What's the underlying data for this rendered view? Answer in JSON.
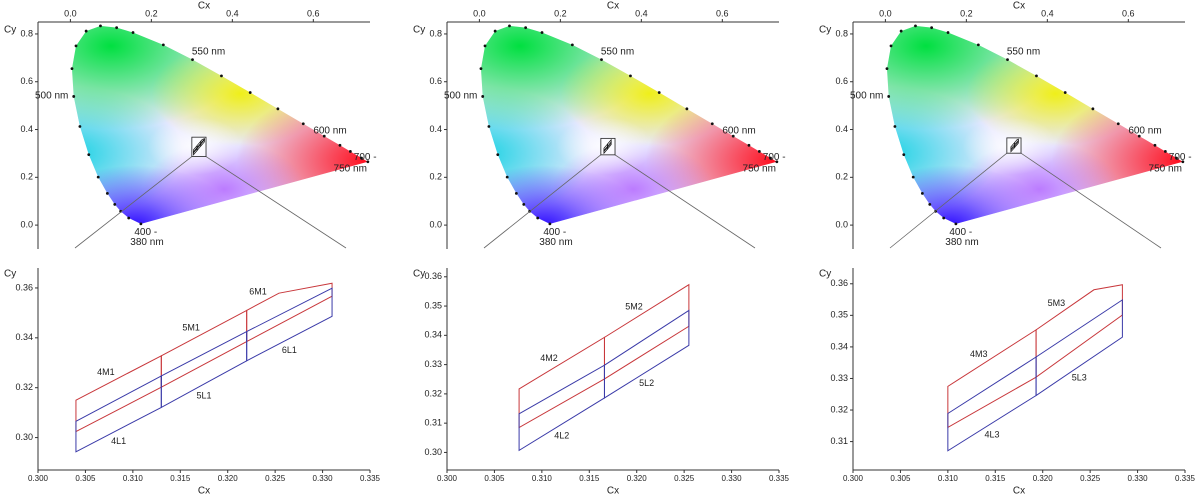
{
  "chart_data": [
    {
      "type": "cie",
      "xlabel": "Cx",
      "ylabel": "Cy",
      "xlim": [
        -0.08,
        0.74
      ],
      "ylim": [
        -0.1,
        0.85
      ],
      "xticks": [
        {
          "value": 0,
          "label": "0.0"
        },
        0.2,
        0.4,
        0.6
      ],
      "yticks": [
        {
          "value": 0,
          "label": "0.0"
        },
        0.2,
        0.4,
        0.6,
        0.8
      ],
      "x": [
        0.1741,
        0.144,
        0.1241,
        0.1096,
        0.0913,
        0.0687,
        0.0454,
        0.0235,
        0.0082,
        0.0039,
        0.0139,
        0.0389,
        0.0743,
        0.1142,
        0.1547,
        0.2296,
        0.3016,
        0.3731,
        0.4441,
        0.5125,
        0.5752,
        0.627,
        0.6658,
        0.6915,
        0.719,
        0.7347
      ],
      "values": [
        0.005,
        0.0297,
        0.0578,
        0.0868,
        0.1327,
        0.2007,
        0.295,
        0.4127,
        0.5384,
        0.6548,
        0.7502,
        0.812,
        0.8338,
        0.8262,
        0.8059,
        0.7543,
        0.6923,
        0.6245,
        0.5547,
        0.4866,
        0.4242,
        0.3725,
        0.334,
        0.3083,
        0.2809,
        0.2653
      ],
      "annotations": [
        "550 nm",
        "500 nm",
        "600 nm",
        [
          "700 -",
          "750 nm"
        ],
        [
          "400 -",
          "380 nm"
        ]
      ]
    },
    {
      "type": "bins",
      "xlabel": "Cx",
      "ylabel": "Cy",
      "xlim": [
        0.3,
        0.335
      ],
      "ylim": [
        0.287,
        0.368
      ],
      "xticks": [
        {
          "value": 0.3,
          "label": "0.300"
        },
        {
          "value": 0.305,
          "label": "0.305"
        },
        {
          "value": 0.31,
          "label": "0.310"
        },
        {
          "value": 0.315,
          "label": "0.315"
        },
        {
          "value": 0.32,
          "label": "0.320"
        },
        {
          "value": 0.325,
          "label": "0.325"
        },
        {
          "value": 0.33,
          "label": "0.330"
        },
        {
          "value": 0.335,
          "label": "0.335"
        }
      ],
      "yticks": [
        {
          "value": 0.3,
          "label": "0.30"
        },
        {
          "value": 0.32,
          "label": "0.32"
        },
        {
          "value": 0.34,
          "label": "0.34"
        },
        {
          "value": 0.36,
          "label": "0.36"
        }
      ],
      "series": [
        {
          "name": "4M1",
          "color": "#c8373b",
          "x": [
            0.304,
            0.313,
            0.313,
            0.304
          ],
          "values": [
            0.315,
            0.3328,
            0.3202,
            0.3024
          ]
        },
        {
          "name": "5M1",
          "color": "#c8373b",
          "x": [
            0.313,
            0.322,
            0.322,
            0.313
          ],
          "values": [
            0.3328,
            0.351,
            0.3385,
            0.3202
          ]
        },
        {
          "name": "6M1",
          "color": "#c8373b",
          "x": [
            0.322,
            0.3254,
            0.331,
            0.331,
            0.322
          ],
          "values": [
            0.351,
            0.3579,
            0.3619,
            0.3567,
            0.3385
          ]
        },
        {
          "name": "4L1",
          "color": "#3a3aa8",
          "x": [
            0.304,
            0.313,
            0.313,
            0.304
          ],
          "values": [
            0.3065,
            0.3247,
            0.3121,
            0.2943
          ]
        },
        {
          "name": "5L1",
          "color": "#3a3aa8",
          "x": [
            0.313,
            0.322,
            0.322,
            0.313
          ],
          "values": [
            0.3247,
            0.3425,
            0.3308,
            0.3121
          ]
        },
        {
          "name": "6L1",
          "color": "#3a3aa8",
          "x": [
            0.322,
            0.331,
            0.331,
            0.322
          ],
          "values": [
            0.3425,
            0.3599,
            0.3486,
            0.3308
          ]
        }
      ]
    },
    {
      "type": "cie",
      "xlabel": "Cx",
      "ylabel": "Cy",
      "xlim": [
        -0.08,
        0.74
      ],
      "ylim": [
        -0.1,
        0.85
      ],
      "xticks": [
        {
          "value": 0,
          "label": "0.0"
        },
        0.2,
        0.4,
        0.6
      ],
      "yticks": [
        {
          "value": 0,
          "label": "0.0"
        },
        0.2,
        0.4,
        0.6,
        0.8
      ],
      "x": [
        0.1741,
        0.144,
        0.1241,
        0.1096,
        0.0913,
        0.0687,
        0.0454,
        0.0235,
        0.0082,
        0.0039,
        0.0139,
        0.0389,
        0.0743,
        0.1142,
        0.1547,
        0.2296,
        0.3016,
        0.3731,
        0.4441,
        0.5125,
        0.5752,
        0.627,
        0.6658,
        0.6915,
        0.719,
        0.7347
      ],
      "values": [
        0.005,
        0.0297,
        0.0578,
        0.0868,
        0.1327,
        0.2007,
        0.295,
        0.4127,
        0.5384,
        0.6548,
        0.7502,
        0.812,
        0.8338,
        0.8262,
        0.8059,
        0.7543,
        0.6923,
        0.6245,
        0.5547,
        0.4866,
        0.4242,
        0.3725,
        0.334,
        0.3083,
        0.2809,
        0.2653
      ],
      "annotations": [
        "550 nm",
        "500 nm",
        "600 nm",
        [
          "700 -",
          "750 nm"
        ],
        [
          "400 -",
          "380 nm"
        ]
      ]
    },
    {
      "type": "bins",
      "xlabel": "Cx",
      "ylabel": "Cy",
      "xlim": [
        0.3,
        0.335
      ],
      "ylim": [
        0.294,
        0.363
      ],
      "xticks": [
        {
          "value": 0.3,
          "label": "0.300"
        },
        {
          "value": 0.305,
          "label": "0.305"
        },
        {
          "value": 0.31,
          "label": "0.310"
        },
        {
          "value": 0.315,
          "label": "0.315"
        },
        {
          "value": 0.32,
          "label": "0.320"
        },
        {
          "value": 0.325,
          "label": "0.325"
        },
        {
          "value": 0.33,
          "label": "0.330"
        },
        {
          "value": 0.335,
          "label": "0.335"
        }
      ],
      "yticks": [
        {
          "value": 0.3,
          "label": "0.30"
        },
        0.31,
        0.32,
        0.33,
        0.34,
        0.35,
        {
          "value": 0.36,
          "label": "0.36"
        }
      ],
      "series": [
        {
          "name": "4M2",
          "color": "#c8373b",
          "x": [
            0.3076,
            0.3166,
            0.3166,
            0.3076
          ],
          "values": [
            0.3217,
            0.3393,
            0.3251,
            0.3085
          ]
        },
        {
          "name": "5M2",
          "color": "#c8373b",
          "x": [
            0.3166,
            0.3255,
            0.3255,
            0.3166
          ],
          "values": [
            0.3393,
            0.3573,
            0.3431,
            0.3251
          ]
        },
        {
          "name": "4L2",
          "color": "#3a3aa8",
          "x": [
            0.3076,
            0.3166,
            0.3166,
            0.3076
          ],
          "values": [
            0.3132,
            0.3298,
            0.3186,
            0.3007
          ]
        },
        {
          "name": "5L2",
          "color": "#3a3aa8",
          "x": [
            0.3166,
            0.3255,
            0.3255,
            0.3166
          ],
          "values": [
            0.3298,
            0.3485,
            0.3366,
            0.3186
          ]
        }
      ]
    },
    {
      "type": "cie",
      "xlabel": "Cx",
      "ylabel": "Cy",
      "xlim": [
        -0.08,
        0.74
      ],
      "ylim": [
        -0.1,
        0.85
      ],
      "xticks": [
        {
          "value": 0,
          "label": "0.0"
        },
        0.2,
        0.4,
        0.6
      ],
      "yticks": [
        {
          "value": 0,
          "label": "0.0"
        },
        0.2,
        0.4,
        0.6,
        0.8
      ],
      "x": [
        0.1741,
        0.144,
        0.1241,
        0.1096,
        0.0913,
        0.0687,
        0.0454,
        0.0235,
        0.0082,
        0.0039,
        0.0139,
        0.0389,
        0.0743,
        0.1142,
        0.1547,
        0.2296,
        0.3016,
        0.3731,
        0.4441,
        0.5125,
        0.5752,
        0.627,
        0.6658,
        0.6915,
        0.719,
        0.7347
      ],
      "values": [
        0.005,
        0.0297,
        0.0578,
        0.0868,
        0.1327,
        0.2007,
        0.295,
        0.4127,
        0.5384,
        0.6548,
        0.7502,
        0.812,
        0.8338,
        0.8262,
        0.8059,
        0.7543,
        0.6923,
        0.6245,
        0.5547,
        0.4866,
        0.4242,
        0.3725,
        0.334,
        0.3083,
        0.2809,
        0.2653
      ],
      "annotations": [
        "550 nm",
        "500 nm",
        "600 nm",
        [
          "700 -",
          "750 nm"
        ],
        [
          "400 -",
          "380 nm"
        ]
      ]
    },
    {
      "type": "bins",
      "xlabel": "Cx",
      "ylabel": "Cy",
      "xlim": [
        0.3,
        0.335
      ],
      "ylim": [
        0.301,
        0.365
      ],
      "xticks": [
        {
          "value": 0.3,
          "label": "0.300"
        },
        {
          "value": 0.305,
          "label": "0.305"
        },
        {
          "value": 0.31,
          "label": "0.310"
        },
        {
          "value": 0.315,
          "label": "0.315"
        },
        {
          "value": 0.32,
          "label": "0.320"
        },
        {
          "value": 0.325,
          "label": "0.325"
        },
        {
          "value": 0.33,
          "label": "0.330"
        },
        {
          "value": 0.335,
          "label": "0.335"
        }
      ],
      "yticks": [
        0.31,
        0.32,
        0.33,
        0.34,
        0.35,
        {
          "value": 0.36,
          "label": "0.36"
        }
      ],
      "series": [
        {
          "name": "4M3",
          "color": "#c8373b",
          "x": [
            0.31,
            0.3193,
            0.3193,
            0.31
          ],
          "values": [
            0.3275,
            0.3454,
            0.3304,
            0.3145
          ]
        },
        {
          "name": "5M3",
          "color": "#c8373b",
          "x": [
            0.3193,
            0.3254,
            0.3284,
            0.3284,
            0.3193
          ],
          "values": [
            0.3454,
            0.3581,
            0.3597,
            0.3501,
            0.3304
          ]
        },
        {
          "name": "4L3",
          "color": "#3a3aa8",
          "x": [
            0.31,
            0.3193,
            0.3193,
            0.31
          ],
          "values": [
            0.3189,
            0.3368,
            0.3246,
            0.3071
          ]
        },
        {
          "name": "5L3",
          "color": "#3a3aa8",
          "x": [
            0.3193,
            0.3284,
            0.3284,
            0.3193
          ],
          "values": [
            0.3368,
            0.3549,
            0.3431,
            0.3246
          ]
        }
      ]
    }
  ]
}
